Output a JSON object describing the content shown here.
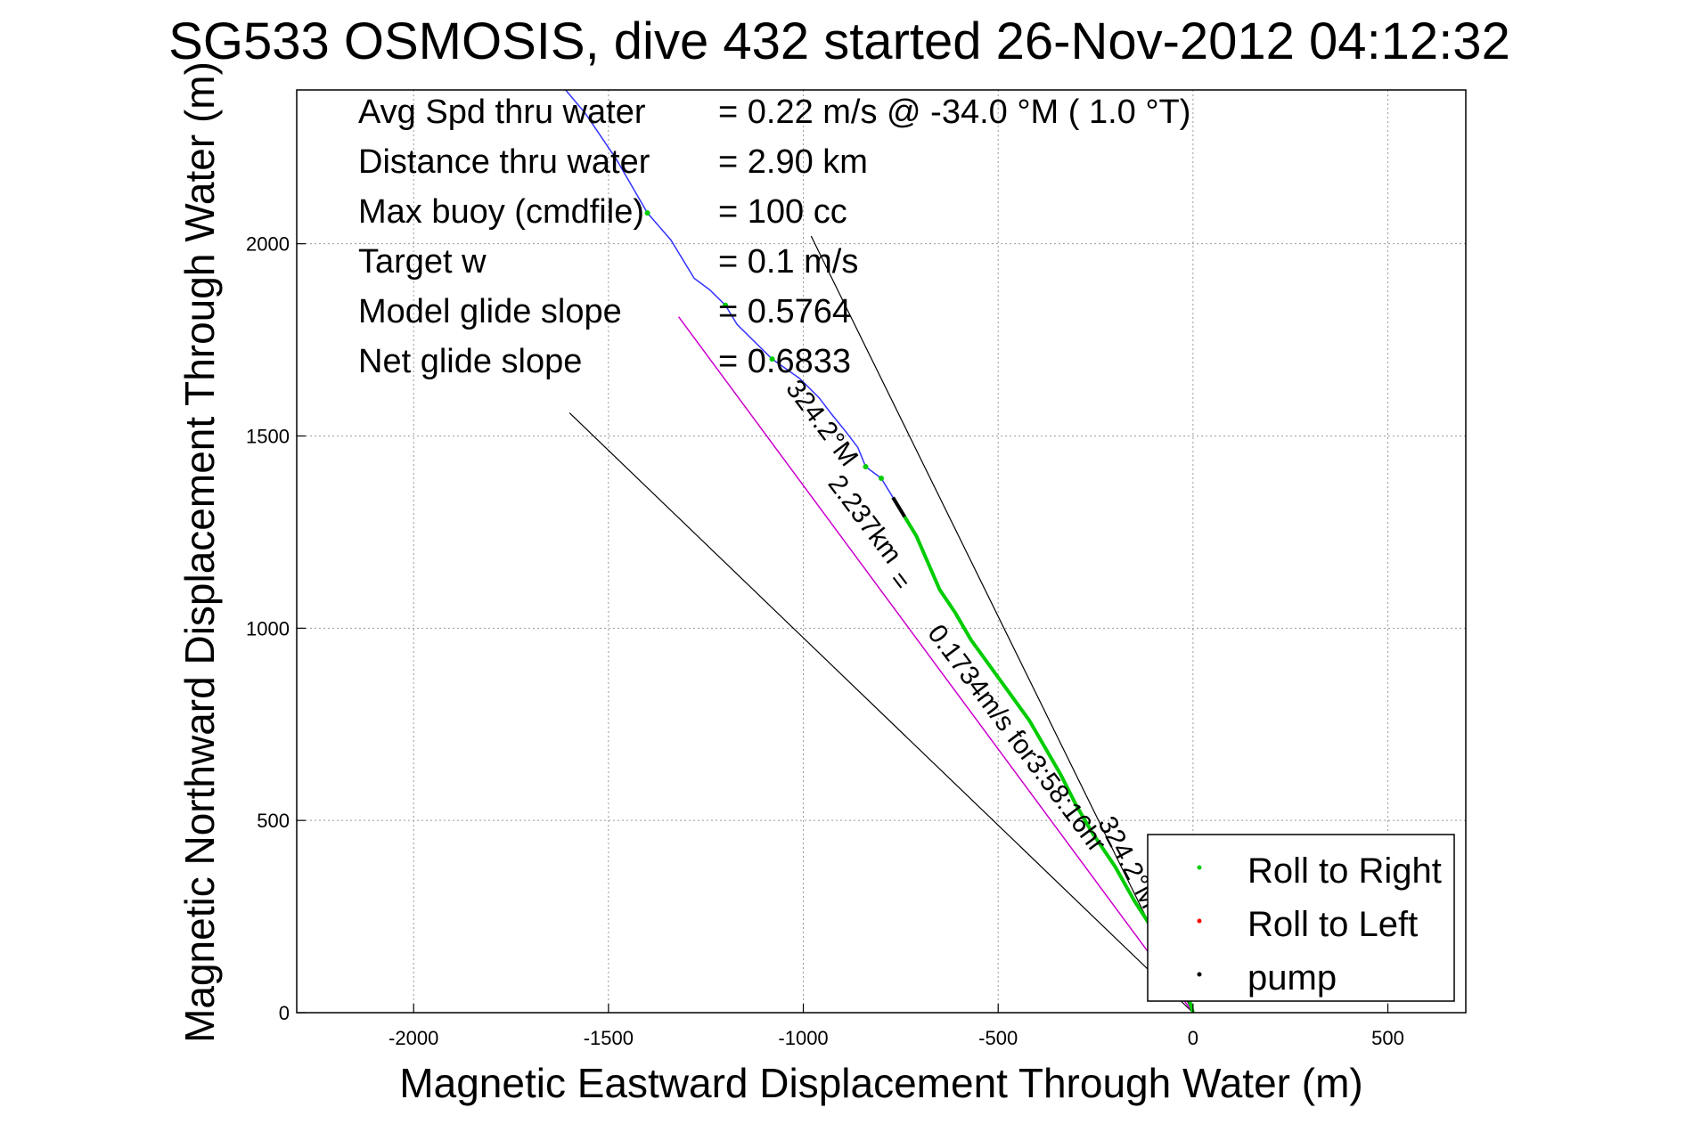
{
  "chart_data": {
    "type": "scatter",
    "title": "SG533 OSMOSIS, dive 432 started 26-Nov-2012 04:12:32",
    "xlabel": "Magnetic Eastward Displacement Through Water (m)",
    "ylabel": "Magnetic Northward Displacement Through Water (m)",
    "xlim": [
      -2300,
      700
    ],
    "ylim": [
      0,
      2400
    ],
    "xticks": [
      -2000,
      -1500,
      -1000,
      -500,
      0,
      500
    ],
    "yticks": [
      0,
      500,
      1000,
      1500,
      2000
    ],
    "grid": true,
    "legend_position": "bottom-right",
    "stats": [
      {
        "label": "Avg Spd thru water",
        "value": "=  0.22 m/s @ -34.0 °M (  1.0 °T)"
      },
      {
        "label": "Distance thru water",
        "value": "=  2.90 km"
      },
      {
        "label": "Max buoy (cmdfile)",
        "value": "= 100 cc"
      },
      {
        "label": "Target w",
        "value": "= 0.1 m/s"
      },
      {
        "label": "Model glide slope",
        "value": "= 0.5764"
      },
      {
        "label": "Net glide slope",
        "value": "= 0.6833"
      }
    ],
    "series": [
      {
        "name": "Roll to Right",
        "color": "#00cc00"
      },
      {
        "name": "Roll to Left",
        "color": "#ff0000"
      },
      {
        "name": "pump",
        "color": "#000000"
      }
    ],
    "track": {
      "x": [
        -1610,
        -1560,
        -1520,
        -1480,
        -1440,
        -1400,
        -1340,
        -1310,
        -1280,
        -1240,
        -1200,
        -1170,
        -1120,
        -1080,
        -1010,
        -960,
        -930,
        -890,
        -860,
        -840,
        -800,
        -770,
        -740,
        -710,
        -680,
        -650,
        -610,
        -570,
        -520,
        -470,
        -420,
        -380,
        -340,
        -300,
        -260,
        -200,
        -150,
        -80,
        -20,
        0
      ],
      "y": [
        2400,
        2340,
        2280,
        2220,
        2150,
        2080,
        2010,
        1960,
        1910,
        1880,
        1840,
        1790,
        1740,
        1700,
        1650,
        1600,
        1560,
        1510,
        1470,
        1420,
        1390,
        1340,
        1290,
        1240,
        1170,
        1100,
        1040,
        970,
        900,
        830,
        760,
        690,
        620,
        540,
        470,
        380,
        290,
        180,
        70,
        0
      ]
    },
    "green_from_index": 22,
    "green_ticks_index": [
      5,
      10,
      13,
      19,
      20
    ],
    "pump_segment": [
      21,
      22
    ],
    "model_line": {
      "x": [
        -1320,
        0
      ],
      "y": [
        1810,
        0
      ],
      "color": "#cc00cc"
    },
    "wedge_lines": [
      {
        "x": [
          -1600,
          0
        ],
        "y": [
          1560,
          0
        ]
      },
      {
        "x": [
          -980,
          0
        ],
        "y": [
          2020,
          0
        ]
      }
    ],
    "track_labels": [
      {
        "text": "324.2°M",
        "x": -970,
        "y": 1520,
        "rotation": 53
      },
      {
        "text": "2.237km",
        "x": -860,
        "y": 1270,
        "rotation": 53
      },
      {
        "text": "=",
        "x": -770,
        "y": 1110,
        "rotation": 53
      },
      {
        "text": "0.1734m/s for3:58:16hr",
        "x": -470,
        "y": 700,
        "rotation": 53
      },
      {
        "text": "324.2°M",
        "x": -185,
        "y": 380,
        "rotation": 62
      }
    ]
  }
}
